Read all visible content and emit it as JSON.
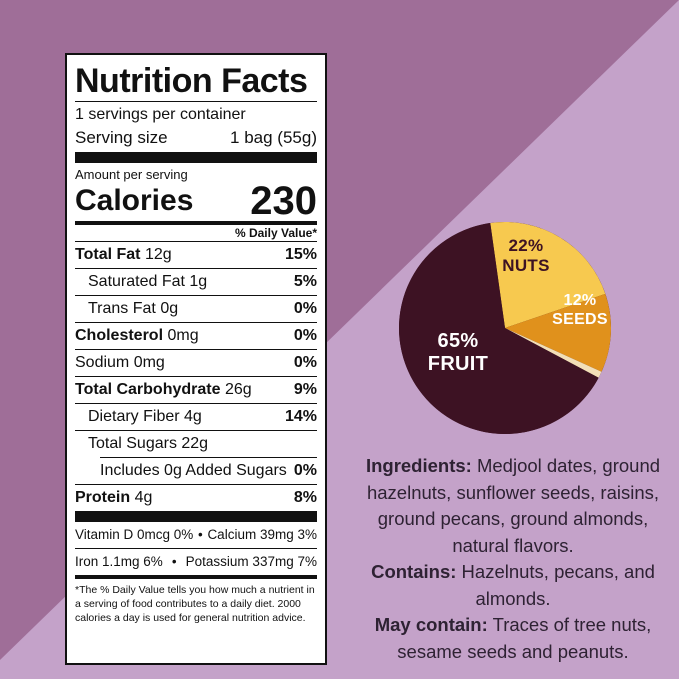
{
  "colors": {
    "background_dark": "#9f6e98",
    "background_light": "#c4a2c9",
    "fruit": "#3d1223",
    "nuts": "#f7c94f",
    "seeds": "#e0911c",
    "sliver": "#f2dfb8",
    "text": "#2e2233"
  },
  "nutrition": {
    "title": "Nutrition Facts",
    "servings": "1 servings per container",
    "serving_size_label": "Serving size",
    "serving_size_value": "1 bag (55g)",
    "amount_per_serving": "Amount per serving",
    "calories_label": "Calories",
    "calories_value": "230",
    "daily_value_header": "% Daily Value*",
    "total_fat": {
      "label": "Total Fat",
      "amount": "12g",
      "dv": "15%"
    },
    "saturated_fat": {
      "label": "Saturated Fat 1g",
      "dv": "5%"
    },
    "trans_fat": {
      "label": "Trans Fat 0g",
      "dv": "0%"
    },
    "cholesterol": {
      "label": "Cholesterol",
      "amount": "0mg",
      "dv": "0%"
    },
    "sodium": {
      "label": "Sodium 0mg",
      "dv": "0%"
    },
    "total_carb": {
      "label": "Total Carbohydrate",
      "amount": "26g",
      "dv": "9%"
    },
    "dietary_fiber": {
      "label": "Dietary Fiber 4g",
      "dv": "14%"
    },
    "total_sugars": {
      "label": "Total Sugars 22g"
    },
    "added_sugars": {
      "label": "Includes 0g Added Sugars",
      "dv": "0%"
    },
    "protein": {
      "label": "Protein",
      "amount": "4g",
      "dv": "8%"
    },
    "vitamin_d": "Vitamin D 0mcg 0%",
    "calcium": "Calcium 39mg 3%",
    "iron": "Iron 1.1mg 6%",
    "potassium": "Potassium 337mg 7%",
    "bullet": "•",
    "footnote": "*The % Daily Value tells you how much a nutrient in a serving of food contributes to a daily diet. 2000 calories a day is used for general nutrition advice."
  },
  "chart_data": {
    "type": "pie",
    "slices": [
      {
        "label": "FRUIT",
        "value": 65,
        "value_text": "65%",
        "color": "#3d1223"
      },
      {
        "label": "NUTS",
        "value": 22,
        "value_text": "22%",
        "color": "#f7c94f"
      },
      {
        "label": "SEEDS",
        "value": 12,
        "value_text": "12%",
        "color": "#e0911c"
      }
    ]
  },
  "ingredients": {
    "ingredients_label": "Ingredients:",
    "ingredients_text": " Medjool dates, ground hazelnuts, sunflower seeds, raisins, ground pecans, ground almonds, natural flavors.",
    "contains_label": "Contains:",
    "contains_text": " Hazelnuts, pecans, and almonds.",
    "may_contain_label": "May contain:",
    "may_contain_text": " Traces of tree nuts, sesame seeds and peanuts."
  }
}
